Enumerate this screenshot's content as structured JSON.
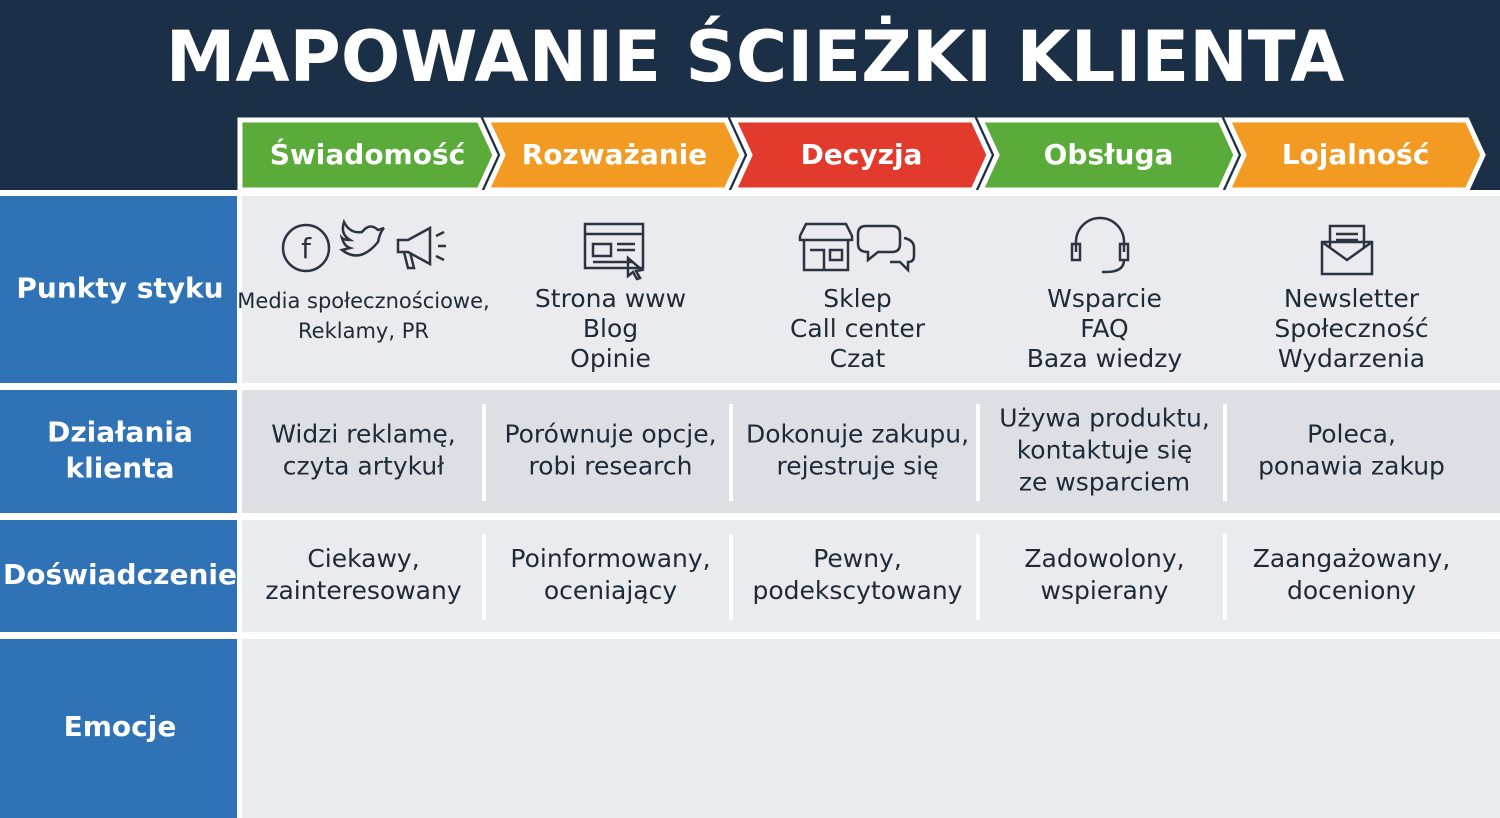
{
  "title": "MAPOWANIE ŚCIEŻKI KLIENTA",
  "stages": [
    "Świadomość",
    "Rozważanie",
    "Decyzja",
    "Obsługa",
    "Lojalność"
  ],
  "rows": [
    {
      "label": [
        "Punkty styku"
      ],
      "cells": [
        [
          "Media społecznościowe,",
          "Reklamy, PR"
        ],
        [
          "Strona www",
          "Blog",
          "Opinie"
        ],
        [
          "Sklep",
          "Call center",
          "Czat"
        ],
        [
          "Wsparcie",
          "FAQ",
          "Baza wiedzy"
        ],
        [
          "Newsletter",
          "Społeczność",
          "Wydarzenia"
        ]
      ]
    },
    {
      "label": [
        "Działania",
        "klienta"
      ],
      "cells": [
        [
          "Widzi reklamę,",
          "czyta artykuł"
        ],
        [
          "Porównuje opcje,",
          "robi research"
        ],
        [
          "Dokonuje zakupu,",
          "rejestruje się"
        ],
        [
          "Używa produktu,",
          "kontaktuje się",
          "ze wsparciem"
        ],
        [
          "Poleca,",
          "ponawia zakup"
        ]
      ]
    },
    {
      "label": [
        "Doświadczenie"
      ],
      "cells": [
        [
          "Ciekawy,",
          "zainteresowany"
        ],
        [
          "Poinformowany,",
          "oceniający"
        ],
        [
          "Pewny,",
          "podekscytowany"
        ],
        [
          "Zadowolony,",
          "wspierany"
        ],
        [
          "Zaangażowany,",
          "doceniony"
        ]
      ]
    }
  ],
  "emotion_label": "Emocje"
}
